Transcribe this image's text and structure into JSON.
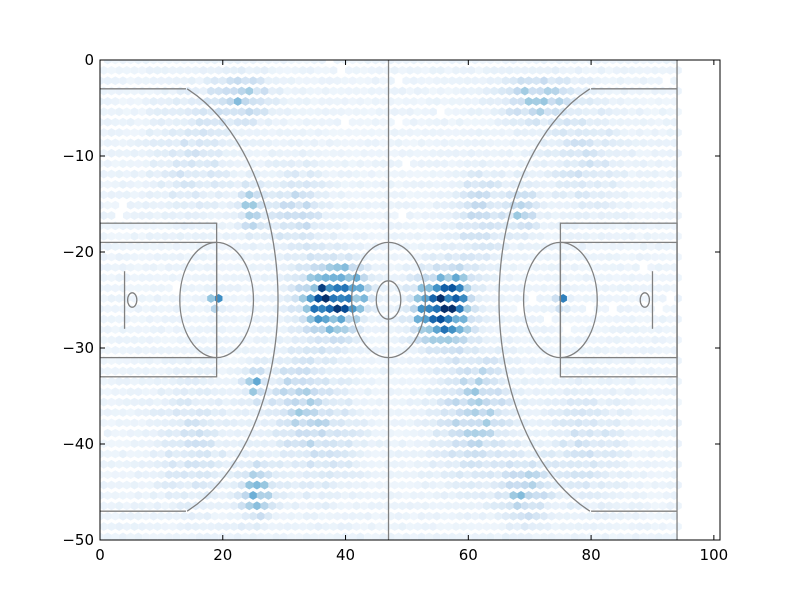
{
  "chart_data": {
    "type": "heatmap",
    "title": "",
    "xlabel": "",
    "ylabel": "",
    "xlim": [
      0,
      101
    ],
    "ylim": [
      -50,
      0
    ],
    "x_ticks": [
      0,
      20,
      40,
      60,
      80,
      100
    ],
    "x_tick_labels": [
      "0",
      "20",
      "40",
      "60",
      "80",
      "100"
    ],
    "y_ticks": [
      0,
      -10,
      -20,
      -30,
      -40,
      -50
    ],
    "y_tick_labels": [
      "0",
      "−10",
      "−20",
      "−30",
      "−40",
      "−50"
    ],
    "grid": false,
    "colormap": [
      "#f7fbff",
      "#deebf7",
      "#c6dbef",
      "#9ecae1",
      "#6baed6",
      "#4292c6",
      "#2171b5",
      "#08519c",
      "#08306b"
    ],
    "court_line_color": "#808080",
    "hotspots": [
      {
        "x": 37,
        "y": -25,
        "sx": 2.6,
        "sy": 2.3,
        "w": 0.85
      },
      {
        "x": 41,
        "y": -24,
        "sx": 2.0,
        "sy": 1.8,
        "w": 0.45
      },
      {
        "x": 55,
        "y": -26,
        "sx": 2.6,
        "sy": 2.2,
        "w": 0.8
      },
      {
        "x": 58,
        "y": -25,
        "sx": 1.8,
        "sy": 2.2,
        "w": 0.45
      },
      {
        "x": 18.8,
        "y": -25,
        "sx": 0.6,
        "sy": 0.5,
        "w": 1.0
      },
      {
        "x": 75.2,
        "y": -25,
        "sx": 0.6,
        "sy": 0.5,
        "w": 1.0
      },
      {
        "x": 24.5,
        "y": -15.5,
        "sx": 1.2,
        "sy": 1.5,
        "w": 0.35
      },
      {
        "x": 69,
        "y": -15.5,
        "sx": 1.5,
        "sy": 1.5,
        "w": 0.3
      },
      {
        "x": 25,
        "y": -33.5,
        "sx": 1.0,
        "sy": 1.2,
        "w": 0.4
      },
      {
        "x": 23,
        "y": -4,
        "sx": 3.0,
        "sy": 1.5,
        "w": 0.3
      },
      {
        "x": 71,
        "y": -4,
        "sx": 3.5,
        "sy": 1.5,
        "w": 0.3
      },
      {
        "x": 25.5,
        "y": -45,
        "sx": 1.8,
        "sy": 2.0,
        "w": 0.35
      },
      {
        "x": 69,
        "y": -45,
        "sx": 2.5,
        "sy": 2.0,
        "w": 0.3
      },
      {
        "x": 36,
        "y": -39,
        "sx": 4.0,
        "sy": 4.0,
        "w": 0.15
      },
      {
        "x": 60,
        "y": -38,
        "sx": 4.0,
        "sy": 4.0,
        "w": 0.15
      },
      {
        "x": 15,
        "y": -10,
        "sx": 4.0,
        "sy": 4.0,
        "w": 0.12
      },
      {
        "x": 15,
        "y": -40,
        "sx": 4.0,
        "sy": 4.0,
        "w": 0.12
      },
      {
        "x": 79,
        "y": -10,
        "sx": 4.0,
        "sy": 4.0,
        "w": 0.12
      },
      {
        "x": 79,
        "y": -40,
        "sx": 4.0,
        "sy": 4.0,
        "w": 0.12
      },
      {
        "x": 32,
        "y": -16,
        "sx": 3.0,
        "sy": 3.0,
        "w": 0.18
      },
      {
        "x": 62,
        "y": -16,
        "sx": 3.0,
        "sy": 3.0,
        "w": 0.18
      },
      {
        "x": 32,
        "y": -35,
        "sx": 3.0,
        "sy": 3.0,
        "w": 0.18
      },
      {
        "x": 62,
        "y": -35,
        "sx": 3.0,
        "sy": 3.0,
        "w": 0.18
      }
    ]
  }
}
